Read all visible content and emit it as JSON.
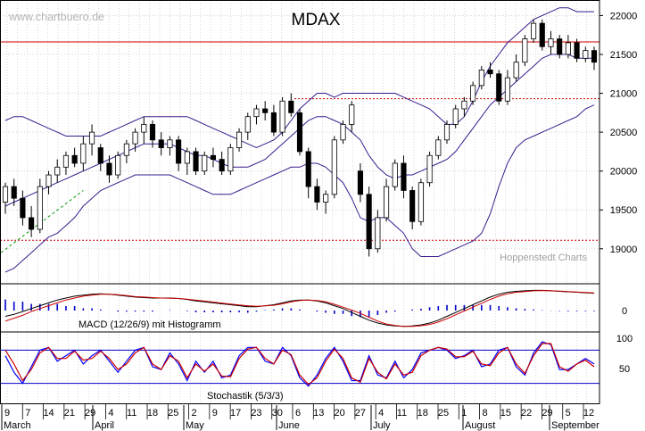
{
  "watermark": "www.chartbuero.de",
  "title": "MDAX",
  "credit": "Hoppenstedt Charts",
  "colors": {
    "background": "#ffffff",
    "grid": "#bdbdbd",
    "candle": "#000000",
    "bollinger": "#3a1c8c",
    "resistance": "#cc0000",
    "support": "#cc0000",
    "trend": "#009900",
    "macd_line": "#000000",
    "macd_signal": "#cc0000",
    "macd_hist": "#0000cc",
    "stoch_k": "#0000ff",
    "stoch_d": "#cc0000",
    "stoch_level": "#0000cc"
  },
  "chart_data": [
    {
      "type": "candlestick",
      "title": "MDAX",
      "y_ticks": [
        19000,
        19500,
        20000,
        20500,
        21000,
        21500,
        22000
      ],
      "ylim": [
        18550,
        22200
      ],
      "grid": true,
      "resistance": 21660,
      "support_dotted": [
        20930,
        19110
      ],
      "trendline_dashed": {
        "from": [
          "Mar 9",
          18980
        ],
        "to": [
          "Mar 26",
          19700
        ]
      },
      "overlays": [
        "Bollinger upper",
        "Bollinger middle",
        "Bollinger lower"
      ],
      "bollinger_upper": [
        20650,
        20700,
        20700,
        20650,
        20600,
        20550,
        20500,
        20450,
        20450,
        20450,
        20450,
        20450,
        20500,
        20550,
        20600,
        20650,
        20700,
        20700,
        20700,
        20700,
        20700,
        20700,
        20650,
        20600,
        20550,
        20500,
        20450,
        20400,
        20350,
        20300,
        20350,
        20400,
        20500,
        20650,
        20800,
        20900,
        21000,
        21000,
        20950,
        21000,
        21000,
        21000,
        21000,
        21000,
        21000,
        21000,
        20950,
        20900,
        20850,
        20800,
        20700,
        20600,
        20600,
        20700,
        20900,
        21150,
        21350,
        21500,
        21650,
        21750,
        21850,
        21950,
        22000,
        22050,
        22100,
        22100,
        22050,
        22050,
        22050
      ],
      "bollinger_mid": [
        19550,
        19600,
        19650,
        19700,
        19750,
        19800,
        19850,
        19900,
        19950,
        20000,
        20050,
        20100,
        20150,
        20200,
        20250,
        20300,
        20350,
        20350,
        20350,
        20350,
        20300,
        20250,
        20200,
        20200,
        20150,
        20100,
        20050,
        20050,
        20050,
        20100,
        20150,
        20250,
        20350,
        20450,
        20550,
        20650,
        20700,
        20700,
        20650,
        20600,
        20500,
        20400,
        20200,
        20050,
        19950,
        19900,
        19950,
        19950,
        20000,
        20050,
        20100,
        20150,
        20250,
        20400,
        20550,
        20700,
        20850,
        20950,
        21050,
        21150,
        21250,
        21350,
        21450,
        21500,
        21500,
        21500,
        21450,
        21450,
        21450
      ],
      "bollinger_lower": [
        18700,
        18750,
        18850,
        18950,
        19050,
        19150,
        19200,
        19300,
        19400,
        19550,
        19650,
        19750,
        19800,
        19850,
        19900,
        19950,
        19950,
        19950,
        19950,
        19950,
        19900,
        19850,
        19800,
        19750,
        19700,
        19700,
        19700,
        19750,
        19800,
        19850,
        19900,
        19950,
        20000,
        20050,
        20050,
        20100,
        20100,
        20050,
        19950,
        19850,
        19650,
        19400,
        19350,
        19400,
        19400,
        19300,
        19200,
        19000,
        18900,
        18900,
        18900,
        18950,
        19000,
        19050,
        19100,
        19200,
        19450,
        19800,
        20100,
        20300,
        20400,
        20450,
        20500,
        20550,
        20600,
        20650,
        20700,
        20800,
        20850
      ],
      "ohlc": [
        [
          19600,
          19850,
          19450,
          19800
        ],
        [
          19800,
          19900,
          19550,
          19650
        ],
        [
          19650,
          19750,
          19300,
          19400
        ],
        [
          19400,
          19550,
          19150,
          19250
        ],
        [
          19250,
          19900,
          19200,
          19800
        ],
        [
          19800,
          20000,
          19700,
          19950
        ],
        [
          19950,
          20150,
          19850,
          20050
        ],
        [
          20050,
          20250,
          19950,
          20200
        ],
        [
          20200,
          20300,
          20050,
          20100
        ],
        [
          20100,
          20450,
          20000,
          20350
        ],
        [
          20350,
          20600,
          20200,
          20500
        ],
        [
          20300,
          20350,
          20000,
          20100
        ],
        [
          20100,
          20200,
          19850,
          19950
        ],
        [
          19950,
          20250,
          19900,
          20200
        ],
        [
          20200,
          20400,
          20100,
          20350
        ],
        [
          20350,
          20550,
          20250,
          20500
        ],
        [
          20500,
          20700,
          20350,
          20600
        ],
        [
          20600,
          20650,
          20300,
          20400
        ],
        [
          20400,
          20500,
          20200,
          20300
        ],
        [
          20300,
          20450,
          20200,
          20400
        ],
        [
          20400,
          20450,
          20000,
          20100
        ],
        [
          20100,
          20300,
          19950,
          20250
        ],
        [
          20250,
          20300,
          19950,
          20000
        ],
        [
          20000,
          20250,
          19950,
          20200
        ],
        [
          20200,
          20300,
          20050,
          20150
        ],
        [
          20150,
          20250,
          19950,
          20000
        ],
        [
          20000,
          20350,
          19950,
          20300
        ],
        [
          20300,
          20550,
          20250,
          20500
        ],
        [
          20500,
          20750,
          20400,
          20700
        ],
        [
          20700,
          20850,
          20600,
          20800
        ],
        [
          20800,
          20900,
          20650,
          20750
        ],
        [
          20750,
          20850,
          20450,
          20500
        ],
        [
          20500,
          20950,
          20450,
          20900
        ],
        [
          20900,
          21000,
          20700,
          20750
        ],
        [
          20750,
          20800,
          20200,
          20250
        ],
        [
          20250,
          20300,
          19650,
          19800
        ],
        [
          19800,
          19900,
          19500,
          19600
        ],
        [
          19600,
          19750,
          19450,
          19700
        ],
        [
          19700,
          20450,
          19650,
          20400
        ],
        [
          20400,
          20650,
          20350,
          20600
        ],
        [
          20600,
          20900,
          20500,
          20850
        ],
        [
          20000,
          20100,
          19600,
          19700
        ],
        [
          19700,
          19800,
          18900,
          19000
        ],
        [
          19000,
          19500,
          18950,
          19400
        ],
        [
          19400,
          19900,
          19350,
          19800
        ],
        [
          19800,
          20150,
          19750,
          20100
        ],
        [
          20100,
          20200,
          19650,
          19750
        ],
        [
          19750,
          19800,
          19250,
          19350
        ],
        [
          19350,
          19900,
          19300,
          19850
        ],
        [
          19850,
          20250,
          19800,
          20200
        ],
        [
          20200,
          20450,
          20150,
          20400
        ],
        [
          20400,
          20650,
          20350,
          20600
        ],
        [
          20600,
          20850,
          20550,
          20800
        ],
        [
          20800,
          20950,
          20700,
          20900
        ],
        [
          20900,
          21150,
          20850,
          21100
        ],
        [
          21100,
          21350,
          21050,
          21300
        ],
        [
          21300,
          21400,
          21200,
          21250
        ],
        [
          21250,
          21300,
          20850,
          20900
        ],
        [
          20900,
          21300,
          20850,
          21200
        ],
        [
          21200,
          21500,
          21150,
          21400
        ],
        [
          21400,
          21750,
          21350,
          21700
        ],
        [
          21700,
          21950,
          21650,
          21900
        ],
        [
          21900,
          21950,
          21550,
          21600
        ],
        [
          21600,
          21800,
          21500,
          21700
        ],
        [
          21700,
          21750,
          21450,
          21500
        ],
        [
          21500,
          21750,
          21450,
          21650
        ],
        [
          21650,
          21700,
          21400,
          21450
        ],
        [
          21450,
          21600,
          21400,
          21550
        ],
        [
          21550,
          21600,
          21300,
          21400
        ]
      ]
    },
    {
      "type": "line",
      "title": "MACD (12/26/9) mit Histogramm",
      "zero_label": "0",
      "series": [
        {
          "name": "MACD",
          "values": [
            -60,
            -40,
            -10,
            20,
            50,
            80,
            110,
            130,
            150,
            160,
            170,
            175,
            170,
            160,
            150,
            140,
            135,
            130,
            130,
            130,
            125,
            115,
            100,
            90,
            80,
            70,
            60,
            50,
            40,
            40,
            50,
            60,
            80,
            100,
            110,
            110,
            100,
            80,
            50,
            20,
            -20,
            -60,
            -100,
            -130,
            -150,
            -160,
            -165,
            -160,
            -150,
            -130,
            -100,
            -60,
            -20,
            20,
            60,
            100,
            140,
            170,
            190,
            200,
            205,
            210,
            210,
            205,
            200,
            195,
            190,
            185,
            180
          ]
        },
        {
          "name": "Signal",
          "values": [
            -110,
            -80,
            -50,
            -10,
            20,
            50,
            80,
            110,
            130,
            150,
            160,
            170,
            170,
            165,
            155,
            145,
            140,
            135,
            130,
            128,
            125,
            118,
            108,
            98,
            88,
            78,
            68,
            58,
            50,
            45,
            48,
            55,
            70,
            90,
            105,
            110,
            105,
            90,
            65,
            35,
            5,
            -30,
            -70,
            -110,
            -140,
            -155,
            -165,
            -165,
            -158,
            -145,
            -120,
            -85,
            -45,
            -5,
            35,
            75,
            115,
            150,
            175,
            190,
            198,
            205,
            208,
            206,
            202,
            198,
            193,
            188,
            183
          ]
        }
      ]
    },
    {
      "type": "line",
      "title": "Stochastik (5/3/3)",
      "y_ticks": [
        100,
        50
      ],
      "levels": [
        80,
        20
      ],
      "series": [
        {
          "name": "%K",
          "values": [
            70,
            40,
            20,
            50,
            80,
            85,
            60,
            70,
            80,
            55,
            70,
            80,
            60,
            40,
            60,
            80,
            85,
            50,
            45,
            75,
            55,
            25,
            60,
            40,
            60,
            30,
            35,
            70,
            85,
            85,
            60,
            55,
            85,
            70,
            30,
            15,
            35,
            65,
            85,
            60,
            25,
            25,
            70,
            35,
            30,
            60,
            30,
            45,
            75,
            80,
            85,
            80,
            65,
            70,
            80,
            50,
            55,
            80,
            85,
            50,
            35,
            75,
            95,
            90,
            45,
            45,
            55,
            65,
            55
          ]
        },
        {
          "name": "%D",
          "values": [
            80,
            55,
            25,
            45,
            75,
            85,
            65,
            65,
            78,
            62,
            65,
            78,
            65,
            45,
            55,
            75,
            85,
            55,
            45,
            70,
            60,
            30,
            55,
            42,
            55,
            33,
            32,
            65,
            82,
            85,
            65,
            55,
            80,
            72,
            35,
            18,
            30,
            60,
            82,
            65,
            30,
            22,
            65,
            40,
            28,
            55,
            35,
            40,
            70,
            80,
            85,
            82,
            68,
            68,
            78,
            55,
            52,
            75,
            85,
            55,
            38,
            70,
            92,
            92,
            50,
            42,
            55,
            62,
            50
          ]
        }
      ]
    }
  ],
  "x_axis": {
    "days": [
      "9",
      "7",
      "14",
      "21",
      "29",
      "4",
      "11",
      "18",
      "25",
      "2",
      "9",
      "17",
      "23",
      "30",
      "6",
      "13",
      "20",
      "27",
      "4",
      "11",
      "18",
      "25",
      "1",
      "8",
      "15",
      "22",
      "29",
      "5",
      "12"
    ],
    "months": [
      "March",
      "April",
      "May",
      "June",
      "July",
      "August",
      "September"
    ]
  }
}
